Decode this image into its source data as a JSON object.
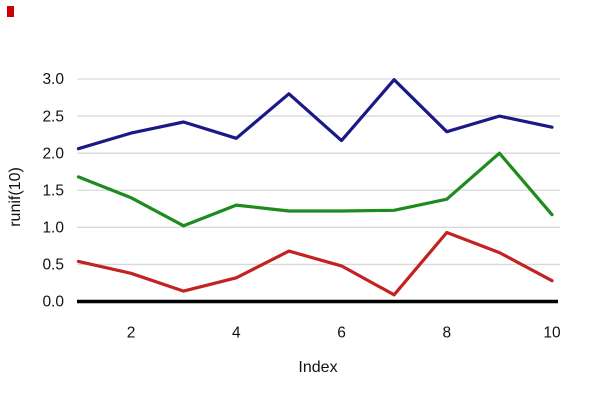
{
  "page": {
    "background": "#ffffff",
    "red_marker": {
      "color": "#cc0000"
    }
  },
  "chart_data": {
    "type": "line",
    "x": [
      1,
      2,
      3,
      4,
      5,
      6,
      7,
      8,
      9,
      10
    ],
    "series": [
      {
        "name": "blue-line",
        "color": "#191987",
        "values": [
          2.06,
          2.27,
          2.42,
          2.2,
          2.8,
          2.17,
          2.99,
          2.29,
          2.5,
          2.35
        ]
      },
      {
        "name": "green-line",
        "color": "#1E8B1E",
        "values": [
          1.68,
          1.4,
          1.02,
          1.3,
          1.22,
          1.22,
          1.23,
          1.38,
          2.0,
          1.17
        ]
      },
      {
        "name": "red-line",
        "color": "#C32222",
        "values": [
          0.54,
          0.38,
          0.14,
          0.32,
          0.68,
          0.48,
          0.09,
          0.93,
          0.66,
          0.28
        ]
      }
    ],
    "title": "",
    "xlabel": "Index",
    "ylabel": "runif(10)",
    "xticks": [
      2,
      4,
      6,
      8,
      10
    ],
    "yticks": [
      "0.0",
      "0.5",
      "1.0",
      "1.5",
      "2.0",
      "2.5",
      "3.0"
    ],
    "xlim": [
      1,
      10
    ],
    "ylim": [
      0.0,
      3.0
    ],
    "grid": "horizontal-solid",
    "gridline_color": "#d9d9d9",
    "legend": "none",
    "baseline": {
      "value": 0.0,
      "color": "#000000"
    }
  }
}
